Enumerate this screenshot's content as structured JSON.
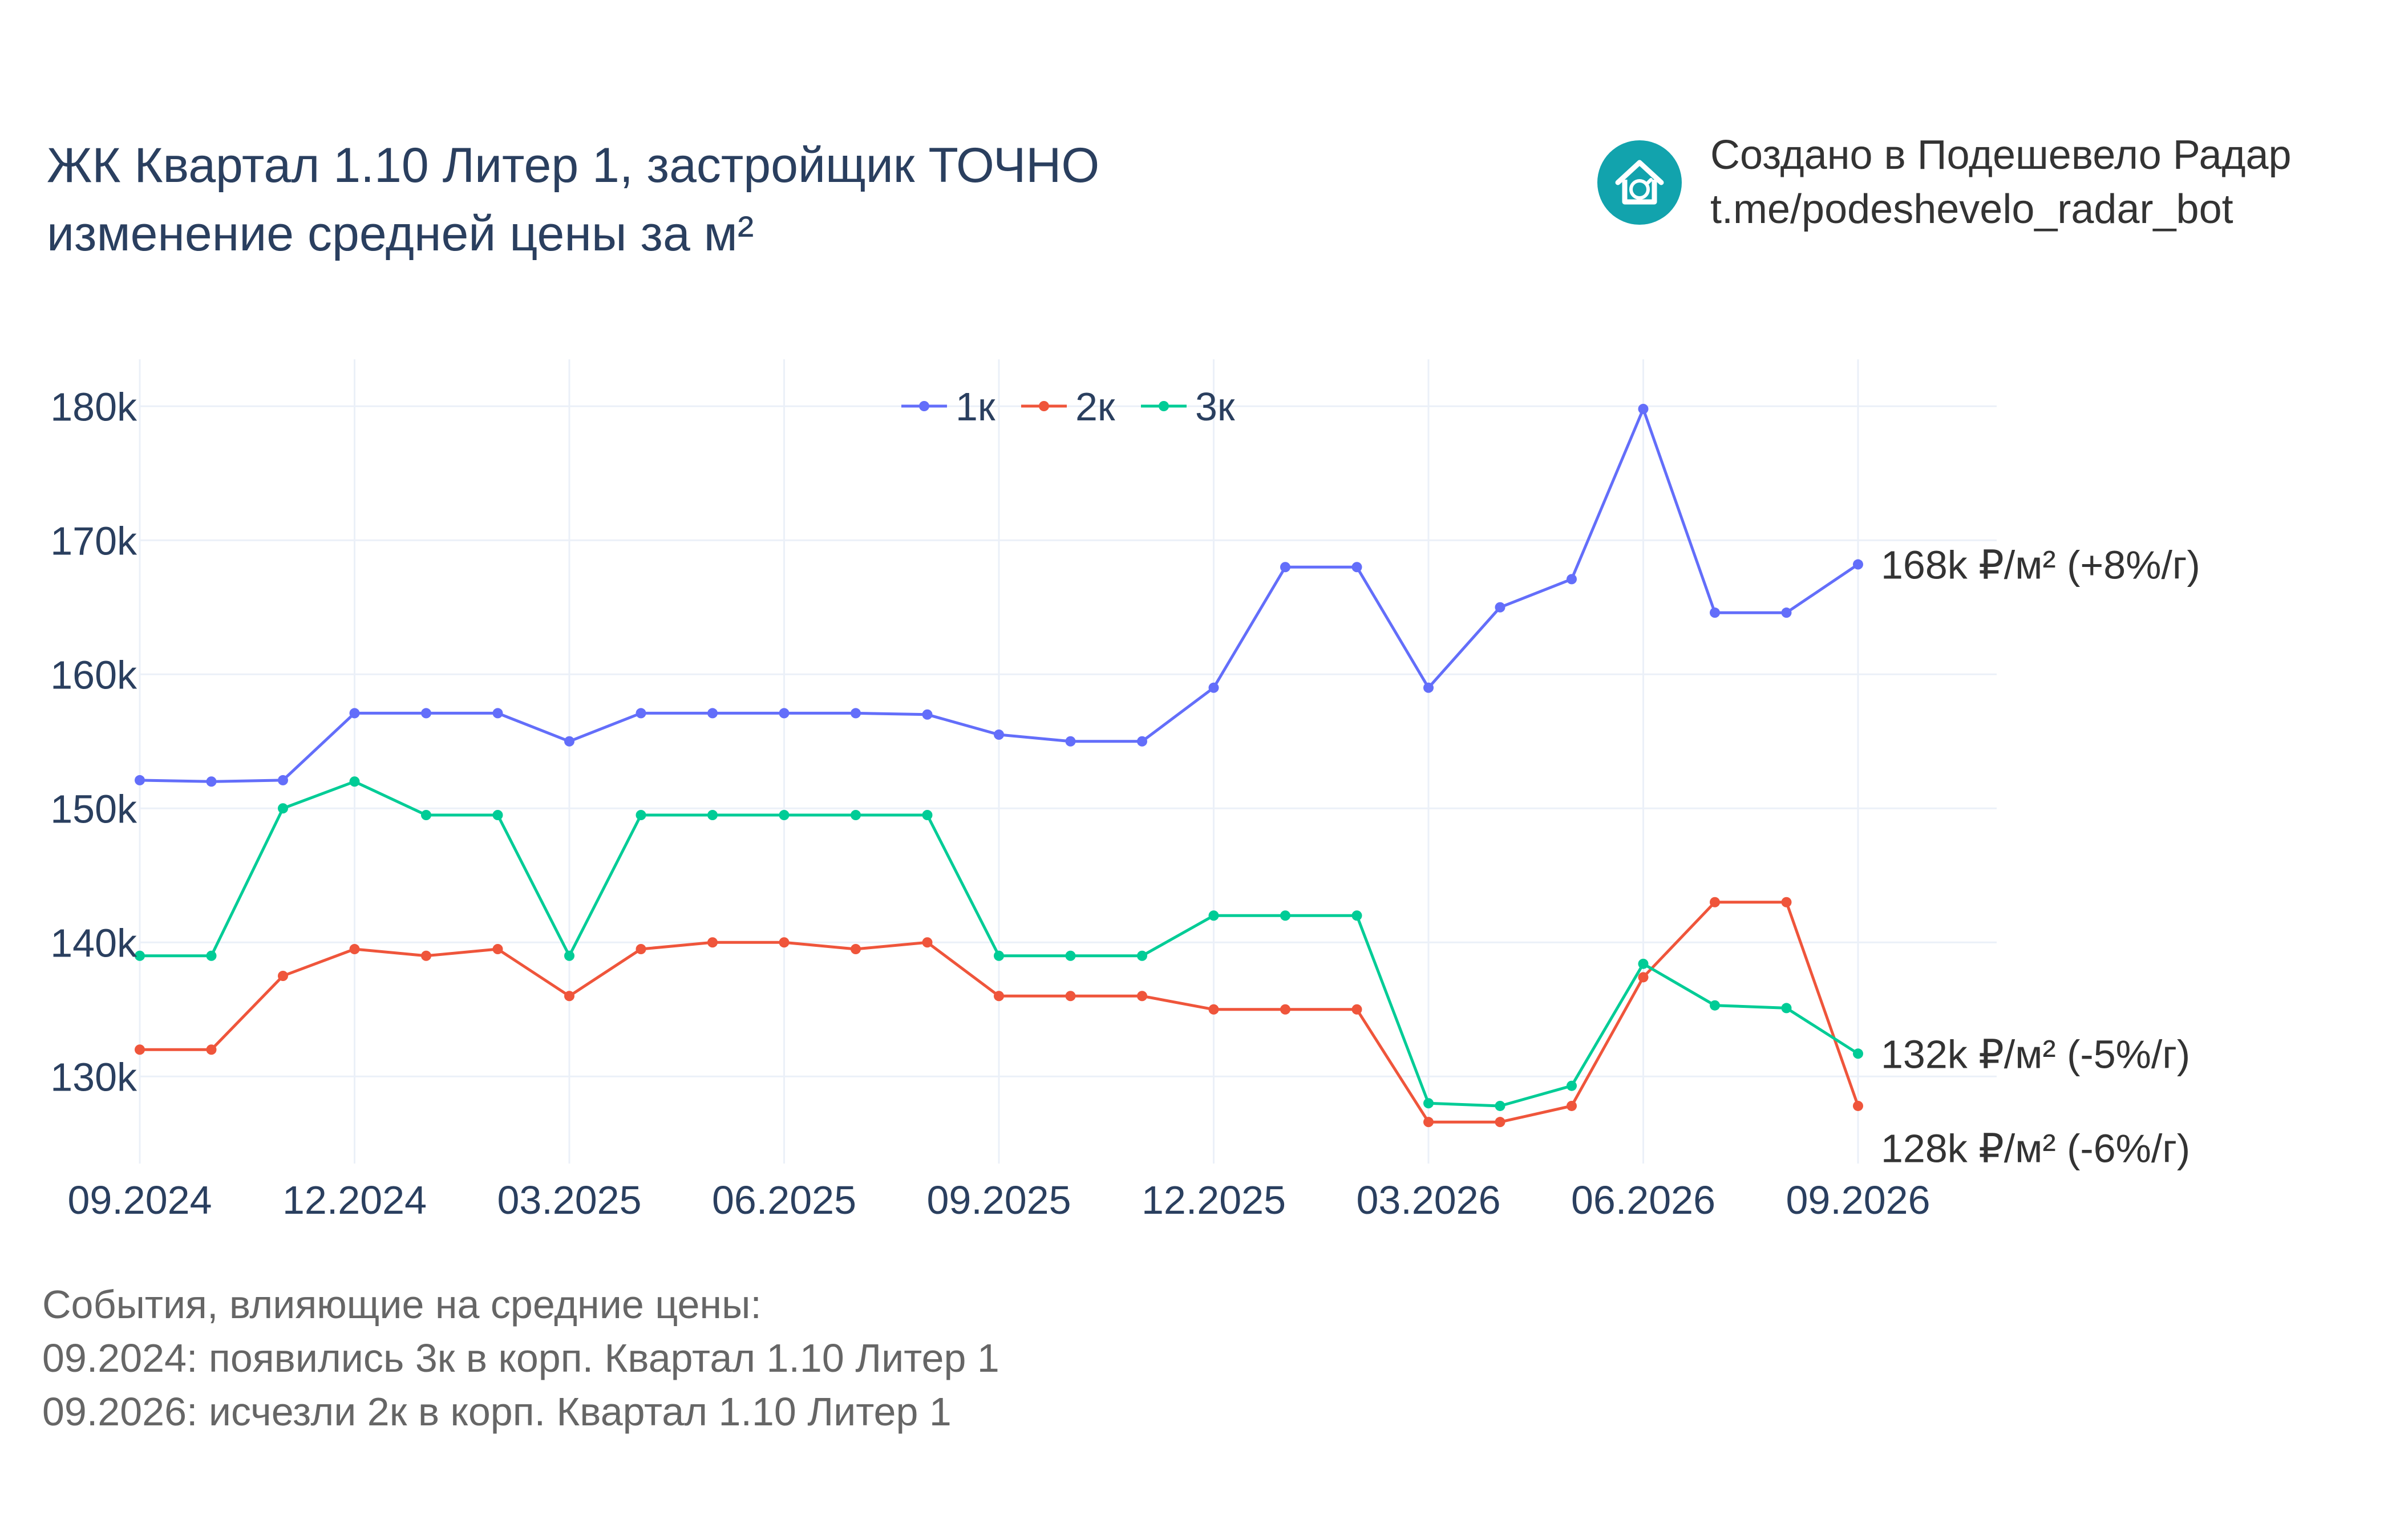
{
  "header": {
    "title_line1": "ЖК Квартал 1.10 Литер 1, застройщик ТОЧНО",
    "title_line2": "изменение средней цены за м²"
  },
  "branding": {
    "line1": "Создано в Подешевело Радар",
    "line2": "t.me/podeshevelo_radar_bot",
    "logo_icon": "house-icon",
    "logo_color": "#12a3ad"
  },
  "events": {
    "heading": "События, влияющие на средние цены:",
    "items": [
      "09.2024: появились 3к в корп. Квартал 1.10 Литер 1",
      "09.2026: исчезли 2к в корп. Квартал 1.10 Литер 1"
    ]
  },
  "chart_data": {
    "type": "line",
    "title": "изменение средней цены за м²",
    "xlabel": "",
    "ylabel": "",
    "x": [
      "09.2024",
      "10.2024",
      "11.2024",
      "12.2024",
      "01.2025",
      "02.2025",
      "03.2025",
      "04.2025",
      "05.2025",
      "06.2025",
      "07.2025",
      "08.2025",
      "09.2025",
      "10.2025",
      "11.2025",
      "12.2025",
      "01.2026",
      "02.2026",
      "03.2026",
      "04.2026",
      "05.2026",
      "06.2026",
      "07.2026",
      "08.2026",
      "09.2026"
    ],
    "x_tick_labels": [
      "09.2024",
      "12.2024",
      "03.2025",
      "06.2025",
      "09.2025",
      "12.2025",
      "03.2026",
      "06.2026",
      "09.2026"
    ],
    "y_tick_values": [
      130000,
      140000,
      150000,
      160000,
      170000,
      180000
    ],
    "y_tick_labels": [
      "130k",
      "140k",
      "150k",
      "160k",
      "170k",
      "180k"
    ],
    "ylim": [
      123500,
      183500
    ],
    "grid": true,
    "legend_position": "top-center",
    "series": [
      {
        "name": "1к",
        "color": "#636efa",
        "values": [
          152100,
          152000,
          152100,
          157100,
          157100,
          157100,
          155000,
          157100,
          157100,
          157100,
          157100,
          157000,
          155500,
          155000,
          155000,
          159000,
          168000,
          168000,
          159000,
          165000,
          167100,
          179800,
          164600,
          164600,
          168200
        ],
        "end_label": "168k ₽/м² (+8%/г)"
      },
      {
        "name": "2к",
        "color": "#ef553b",
        "values": [
          132000,
          132000,
          137500,
          139500,
          139000,
          139500,
          136000,
          139500,
          140000,
          140000,
          139500,
          140000,
          136000,
          136000,
          136000,
          135000,
          135000,
          135000,
          126600,
          126600,
          127800,
          137400,
          143000,
          143000,
          127800
        ],
        "end_label": "128k ₽/м² (-6%/г)"
      },
      {
        "name": "3к",
        "color": "#00cc96",
        "values": [
          139000,
          139000,
          150000,
          152000,
          149500,
          149500,
          139000,
          149500,
          149500,
          149500,
          149500,
          149500,
          139000,
          139000,
          139000,
          142000,
          142000,
          142000,
          128000,
          127800,
          129300,
          138400,
          135300,
          135100,
          131700
        ],
        "end_label": "132k ₽/м² (-5%/г)"
      }
    ]
  }
}
